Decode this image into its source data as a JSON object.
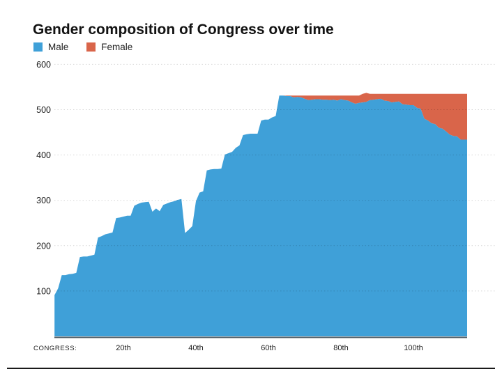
{
  "header": {
    "title": "Gender composition of Congress over time"
  },
  "axis": {
    "x_prefix_label": "CONGRESS:",
    "y_label_color": "#1a1a1a",
    "x_label_color": "#222222",
    "gridline_style": "dotted",
    "baseline_color": "#47565f"
  },
  "chart_data": {
    "type": "area",
    "stacked": true,
    "title": "Gender composition of Congress over time",
    "x_label_prefix": "CONGRESS:",
    "x_congress_numbers": {
      "first": 1,
      "last": 113
    },
    "x_ticks": [
      {
        "value": 20,
        "label": "20th"
      },
      {
        "value": 40,
        "label": "40th"
      },
      {
        "value": 60,
        "label": "60th"
      },
      {
        "value": 80,
        "label": "80th"
      },
      {
        "value": 100,
        "label": "100th"
      }
    ],
    "y_ticks": [
      100,
      200,
      300,
      400,
      500,
      600
    ],
    "ylim": [
      0,
      600
    ],
    "grid": "horizontal-dotted",
    "legend_position": "top-left",
    "series": [
      {
        "name": "Male",
        "color": "#3FA0D8",
        "values": [
          91,
          106,
          135,
          135,
          137,
          138,
          140,
          175,
          176,
          176,
          178,
          180,
          218,
          221,
          225,
          227,
          229,
          261,
          262,
          264,
          266,
          266,
          288,
          292,
          295,
          296,
          297,
          275,
          282,
          276,
          290,
          293,
          296,
          298,
          301,
          303,
          228,
          235,
          243,
          298,
          317,
          320,
          366,
          368,
          369,
          369,
          370,
          401,
          404,
          407,
          416,
          421,
          444,
          446,
          447,
          447,
          447,
          476,
          478,
          478,
          483,
          486,
          531,
          531,
          530,
          530,
          527,
          528,
          527,
          524,
          521,
          522,
          523,
          523,
          522,
          522,
          521,
          522,
          520,
          523,
          521,
          520,
          516,
          513,
          515,
          516,
          517,
          521,
          522,
          523,
          524,
          520,
          519,
          516,
          517,
          518,
          512,
          511,
          510,
          510,
          504,
          502,
          480,
          476,
          470,
          468,
          460,
          458,
          452,
          445,
          442,
          441,
          434
        ]
      },
      {
        "name": "Female",
        "color": "#D9654A",
        "values": [
          0,
          0,
          0,
          0,
          0,
          0,
          0,
          0,
          0,
          0,
          0,
          0,
          0,
          0,
          0,
          0,
          0,
          0,
          0,
          0,
          0,
          0,
          0,
          0,
          0,
          0,
          0,
          0,
          0,
          0,
          0,
          0,
          0,
          0,
          0,
          0,
          0,
          0,
          0,
          0,
          0,
          0,
          0,
          0,
          0,
          0,
          0,
          0,
          0,
          0,
          0,
          0,
          0,
          0,
          0,
          0,
          0,
          0,
          0,
          0,
          0,
          0,
          0,
          0,
          1,
          1,
          4,
          3,
          4,
          7,
          10,
          9,
          8,
          8,
          9,
          9,
          10,
          9,
          11,
          8,
          10,
          11,
          15,
          18,
          16,
          19,
          20,
          14,
          13,
          12,
          11,
          15,
          16,
          19,
          18,
          17,
          23,
          24,
          25,
          25,
          31,
          33,
          55,
          59,
          65,
          67,
          75,
          77,
          83,
          90,
          93,
          94,
          101
        ]
      }
    ]
  }
}
